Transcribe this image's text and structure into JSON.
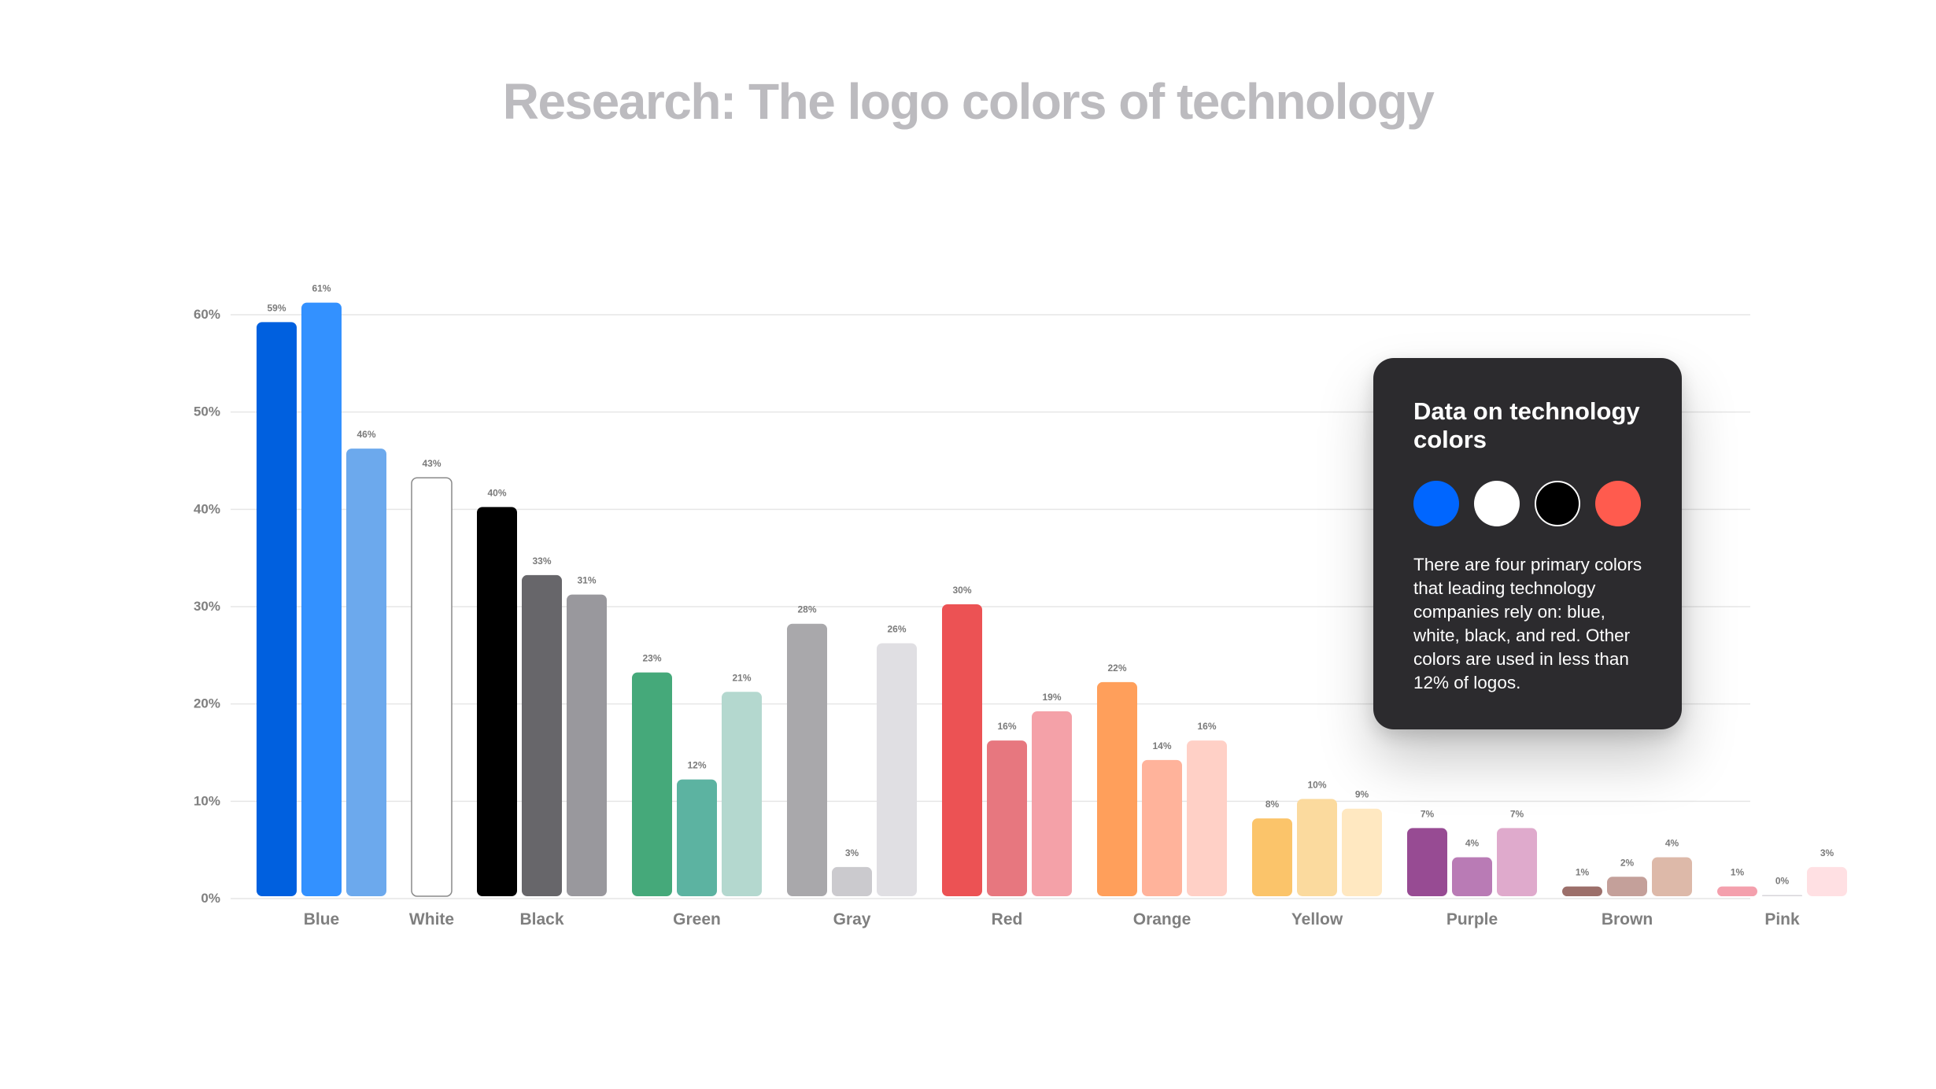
{
  "chart_data": {
    "type": "bar",
    "title": "Research: The logo colors of technology",
    "xlabel": "",
    "ylabel": "",
    "ylim": [
      0,
      60
    ],
    "yticks": [
      0,
      10,
      20,
      30,
      40,
      50,
      60
    ],
    "ytick_labels": [
      "0%",
      "10%",
      "20%",
      "30%",
      "40%",
      "50%",
      "60%"
    ],
    "grid": true,
    "legend": "none",
    "groups": [
      {
        "category": "Blue",
        "bars": [
          {
            "value": 59,
            "label": "59%",
            "color": "#0060DF"
          },
          {
            "value": 61,
            "label": "61%",
            "color": "#3391FF"
          },
          {
            "value": 46,
            "label": "46%",
            "color": "#6CA9ED"
          }
        ]
      },
      {
        "category": "White",
        "bars": [
          {
            "value": 43,
            "label": "43%",
            "color": "#FFFFFF",
            "outline": "#8A8A8A"
          }
        ]
      },
      {
        "category": "Black",
        "bars": [
          {
            "value": 40,
            "label": "40%",
            "color": "#000000"
          },
          {
            "value": 33,
            "label": "33%",
            "color": "#67666A"
          },
          {
            "value": 31,
            "label": "31%",
            "color": "#99989D"
          }
        ]
      },
      {
        "category": "Green",
        "bars": [
          {
            "value": 23,
            "label": "23%",
            "color": "#45A97A"
          },
          {
            "value": 12,
            "label": "12%",
            "color": "#5CB3A1"
          },
          {
            "value": 21,
            "label": "21%",
            "color": "#B4D8CF"
          }
        ]
      },
      {
        "category": "Gray",
        "bars": [
          {
            "value": 28,
            "label": "28%",
            "color": "#A9A8AB"
          },
          {
            "value": 3,
            "label": "3%",
            "color": "#CBCACE"
          },
          {
            "value": 26,
            "label": "26%",
            "color": "#E0DFE3"
          }
        ]
      },
      {
        "category": "Red",
        "bars": [
          {
            "value": 30,
            "label": "30%",
            "color": "#EC5254"
          },
          {
            "value": 16,
            "label": "16%",
            "color": "#E7777F"
          },
          {
            "value": 19,
            "label": "19%",
            "color": "#F4A1A8"
          }
        ]
      },
      {
        "category": "Orange",
        "bars": [
          {
            "value": 22,
            "label": "22%",
            "color": "#FF9F5B"
          },
          {
            "value": 14,
            "label": "14%",
            "color": "#FFB39B"
          },
          {
            "value": 16,
            "label": "16%",
            "color": "#FFD0C6"
          }
        ]
      },
      {
        "category": "Yellow",
        "bars": [
          {
            "value": 8,
            "label": "8%",
            "color": "#FBC46A"
          },
          {
            "value": 10,
            "label": "10%",
            "color": "#FBDA9E"
          },
          {
            "value": 9,
            "label": "9%",
            "color": "#FFE8C1"
          }
        ]
      },
      {
        "category": "Purple",
        "bars": [
          {
            "value": 7,
            "label": "7%",
            "color": "#974B93"
          },
          {
            "value": 4,
            "label": "4%",
            "color": "#B97BB5"
          },
          {
            "value": 7,
            "label": "7%",
            "color": "#DFAACC"
          }
        ]
      },
      {
        "category": "Brown",
        "bars": [
          {
            "value": 1,
            "label": "1%",
            "color": "#9C6F6A"
          },
          {
            "value": 2,
            "label": "2%",
            "color": "#C4A09A"
          },
          {
            "value": 4,
            "label": "4%",
            "color": "#DDB9A9"
          }
        ]
      },
      {
        "category": "Pink",
        "bars": [
          {
            "value": 1,
            "label": "1%",
            "color": "#F4A0AD"
          },
          {
            "value": 0,
            "label": "0%",
            "color": "#D7D5D9"
          },
          {
            "value": 3,
            "label": "3%",
            "color": "#FFE0E3"
          }
        ]
      }
    ]
  },
  "colors": {
    "title": "#BCBBBF",
    "axis_text": "#7F7F7F",
    "grid": "#E6E6E6",
    "value_label": "#7A7A7A",
    "card_background": "#2C2B2E",
    "card_text": "#FFFFFF"
  },
  "card": {
    "title": "Data on technology colors",
    "swatches": [
      {
        "name": "blue",
        "color": "#0066FF"
      },
      {
        "name": "white",
        "color": "#FFFFFF"
      },
      {
        "name": "black",
        "color": "#000000"
      },
      {
        "name": "red",
        "color": "#FF5B4E"
      }
    ],
    "text": "There are four primary colors that leading technology companies rely on: blue, white, black, and red. Other colors are used in less than 12% of logos."
  }
}
